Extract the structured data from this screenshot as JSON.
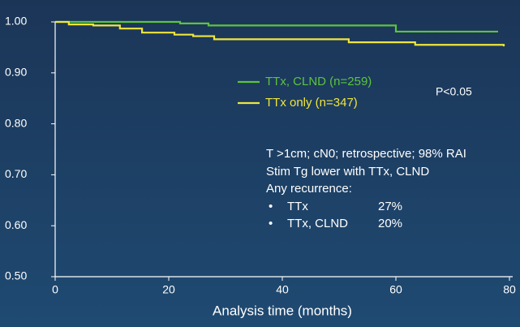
{
  "chart_data": {
    "type": "line",
    "step": true,
    "x_label": "Analysis time (months)",
    "xlim": [
      0,
      80
    ],
    "xticks": [
      0,
      20,
      40,
      60,
      80
    ],
    "ylim": [
      0.5,
      1.0
    ],
    "yticks": [
      {
        "value": 0.5,
        "label": "0.50"
      },
      {
        "value": 0.6,
        "label": "0.60"
      },
      {
        "value": 0.7,
        "label": "0.70"
      },
      {
        "value": 0.8,
        "label": "0.80"
      },
      {
        "value": 0.9,
        "label": "0.90"
      },
      {
        "value": 1.0,
        "label": "1.00"
      }
    ],
    "series": [
      {
        "name": "TTx, CLND (n=259)",
        "color": "#5cc43c",
        "x": [
          0,
          22,
          27,
          60,
          78
        ],
        "values": [
          1.0,
          0.997,
          0.993,
          0.981,
          0.981
        ]
      },
      {
        "name": "TTx only (n=347)",
        "color": "#f0e63c",
        "x": [
          0,
          2.4,
          6.7,
          11.4,
          15.3,
          21,
          24.3,
          28,
          51.7,
          63.4,
          79
        ],
        "values": [
          1.0,
          0.995,
          0.993,
          0.987,
          0.979,
          0.975,
          0.972,
          0.966,
          0.96,
          0.955,
          0.952
        ]
      }
    ],
    "p_value": "P<0.05",
    "notes": [
      "T >1cm; cN0; retrospective; 98% RAI",
      "Stim Tg lower with TTx, CLND",
      "Any recurrence:"
    ],
    "bullets": [
      {
        "label": "TTx",
        "value": "27%"
      },
      {
        "label": "TTx, CLND",
        "value": "20%"
      }
    ]
  }
}
